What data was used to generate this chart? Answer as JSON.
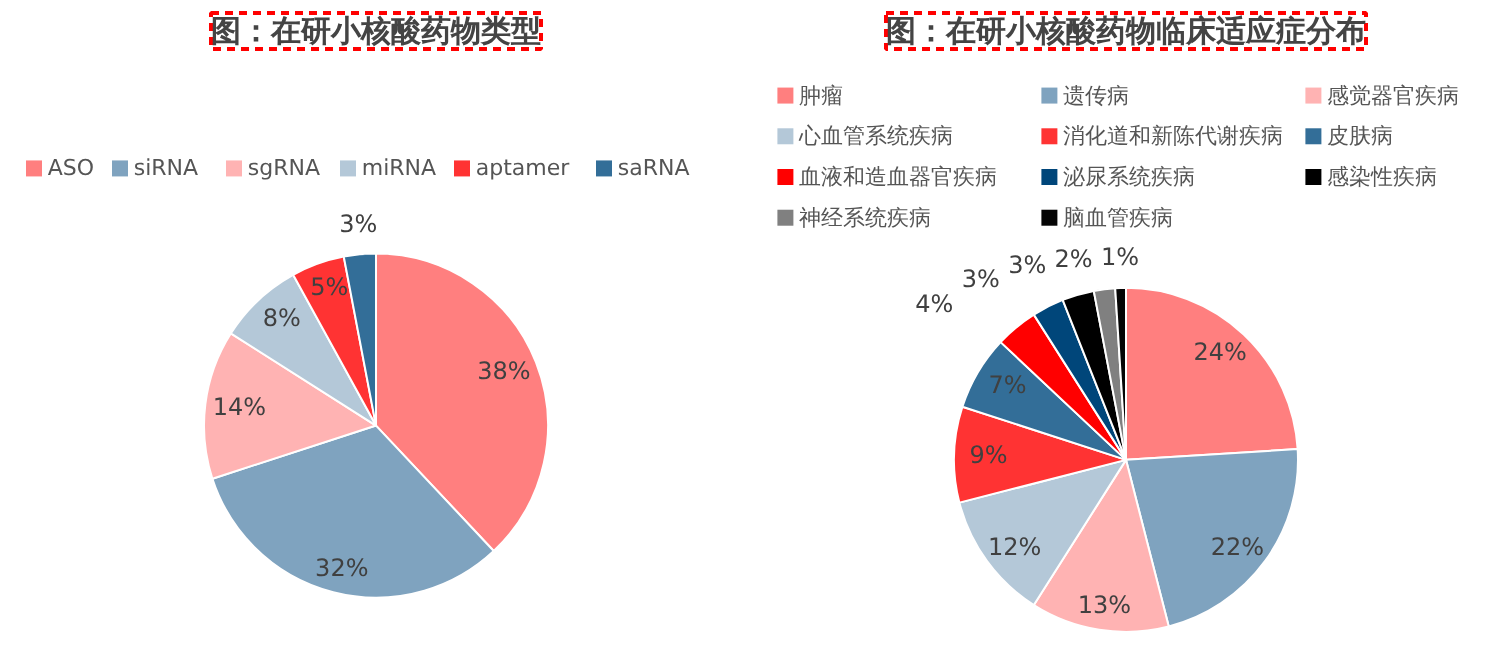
{
  "chart_data": [
    {
      "type": "pie",
      "title": "图：在研小核酸药物类型",
      "categories": [
        "ASO",
        "siRNA",
        "sgRNA",
        "miRNA",
        "aptamer",
        "saRNA"
      ],
      "values": [
        38,
        32,
        14,
        8,
        5,
        3
      ],
      "colors": [
        "#ff7f7f",
        "#7fa3bf",
        "#ffb3b3",
        "#b4c8d8",
        "#ff3333",
        "#336e98"
      ],
      "value_labels": [
        "38%",
        "32%",
        "14%",
        "8%",
        "5%",
        "3%"
      ],
      "legend": "top"
    },
    {
      "type": "pie",
      "title": "图：在研小核酸药物临床适应症分布",
      "categories": [
        "肿瘤",
        "遗传病",
        "感觉器官疾病",
        "心血管系统疾病",
        "消化道和新陈代谢疾病",
        "皮肤病",
        "血液和造血器官疾病",
        "泌尿系统疾病",
        "感染性疾病",
        "神经系统疾病",
        "脑血管疾病"
      ],
      "values": [
        24,
        22,
        13,
        12,
        9,
        7,
        4,
        3,
        3,
        2,
        1
      ],
      "colors": [
        "#ff7f7f",
        "#7fa3bf",
        "#ffb3b3",
        "#b4c8d8",
        "#ff3333",
        "#336e98",
        "#ff0000",
        "#00467a",
        "#000000",
        "#808080",
        "#050505"
      ],
      "value_labels": [
        "24%",
        "22%",
        "13%",
        "12%",
        "9%",
        "7%",
        "4%",
        "3%",
        "3%",
        "2%",
        "1%"
      ],
      "legend": "top"
    }
  ]
}
